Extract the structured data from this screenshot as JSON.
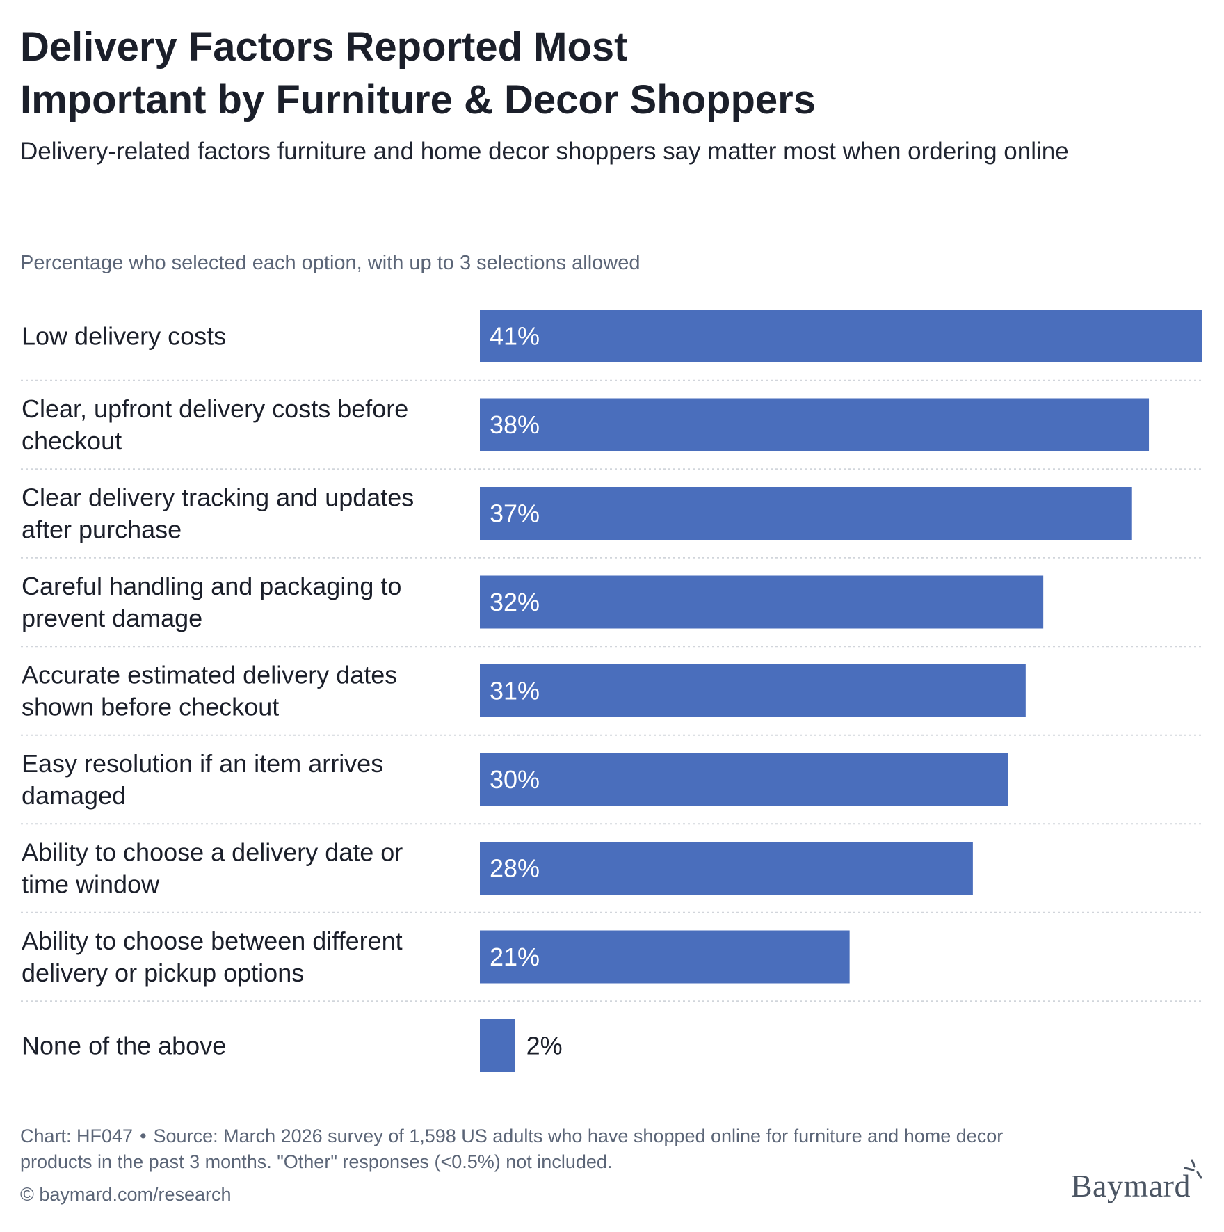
{
  "header": {
    "title_line1": "Delivery Factors Reported Most",
    "title_line2": "Important by Furniture & Decor Shoppers",
    "subtitle": "Delivery-related factors furniture and home decor shoppers say matter most when ordering online",
    "note": "Percentage who selected each option, with up to 3 selections allowed"
  },
  "chart_data": {
    "type": "bar",
    "orientation": "horizontal",
    "title": "Delivery Factors Reported Most Important by Furniture & Decor Shoppers",
    "subtitle": "Delivery-related factors furniture and home decor shoppers say matter most when ordering online",
    "categories": [
      "Low delivery costs",
      "Clear, upfront delivery costs before checkout",
      "Clear delivery tracking and updates after purchase",
      "Careful handling and packaging to prevent damage",
      "Accurate estimated delivery dates shown before checkout",
      "Easy resolution if an item arrives damaged",
      "Ability to choose a delivery date or time window",
      "Ability to choose between different delivery or pickup options",
      "None of the above"
    ],
    "category_lines": [
      [
        "Low delivery costs"
      ],
      [
        "Clear, upfront delivery costs before",
        "checkout"
      ],
      [
        "Clear delivery tracking and updates",
        "after purchase"
      ],
      [
        "Careful handling and packaging to",
        "prevent damage"
      ],
      [
        "Accurate estimated delivery dates",
        "shown before checkout"
      ],
      [
        "Easy resolution if an item arrives",
        "damaged"
      ],
      [
        "Ability to choose a delivery date or",
        "time window"
      ],
      [
        "Ability to choose between different",
        "delivery or pickup options"
      ],
      [
        "None of the above"
      ]
    ],
    "values": [
      41,
      38,
      37,
      32,
      31,
      30,
      28,
      21,
      2
    ],
    "value_labels": [
      "41%",
      "38%",
      "37%",
      "32%",
      "31%",
      "30%",
      "28%",
      "21%",
      "2%"
    ],
    "unit": "%",
    "xlim": [
      0,
      41
    ],
    "grid": false,
    "legend": "none",
    "colors": {
      "bar": "#4a6ebc",
      "label_inside": "#ffffff",
      "label_outside": "#1b1f2a",
      "separator": "#d1d5db"
    }
  },
  "footer": {
    "chart_id": "Chart: HF047",
    "separator": "•",
    "source": "Source: March 2026 survey of 1,598 US adults who have shopped online for furniture and home decor products in the past 3 months. \"Other\" responses (<0.5%) not included.",
    "credit": "© baymard.com/research"
  },
  "brand": {
    "logo_text": "Baymard"
  }
}
